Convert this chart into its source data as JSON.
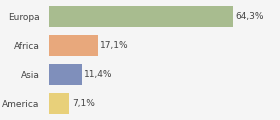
{
  "categories": [
    "Europa",
    "Africa",
    "Asia",
    "America"
  ],
  "values": [
    64.3,
    17.1,
    11.4,
    7.1
  ],
  "labels": [
    "64,3%",
    "17,1%",
    "11,4%",
    "7,1%"
  ],
  "bar_colors": [
    "#a8bc8f",
    "#e8a87c",
    "#7f8fbb",
    "#e8d07a"
  ],
  "background_color": "#f5f5f5",
  "xlim": [
    0,
    80
  ],
  "bar_height": 0.7,
  "label_fontsize": 6.5,
  "tick_fontsize": 6.5
}
